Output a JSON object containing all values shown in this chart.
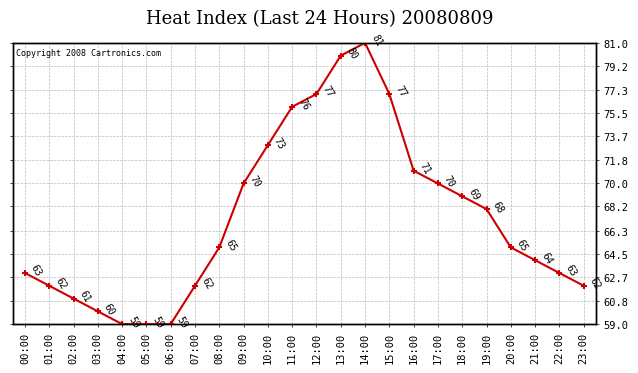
{
  "title": "Heat Index (Last 24 Hours) 20080809",
  "copyright": "Copyright 2008 Cartronics.com",
  "hours": [
    "00:00",
    "01:00",
    "02:00",
    "03:00",
    "04:00",
    "05:00",
    "06:00",
    "07:00",
    "08:00",
    "09:00",
    "10:00",
    "11:00",
    "12:00",
    "13:00",
    "14:00",
    "15:00",
    "16:00",
    "17:00",
    "18:00",
    "19:00",
    "20:00",
    "21:00",
    "22:00",
    "23:00"
  ],
  "values": [
    63,
    62,
    61,
    60,
    59,
    59,
    59,
    62,
    65,
    70,
    73,
    76,
    77,
    80,
    81,
    77,
    71,
    70,
    69,
    68,
    65,
    64,
    63,
    62
  ],
  "line_color": "#cc0000",
  "marker_color": "#cc0000",
  "background_color": "#ffffff",
  "grid_color": "#bbbbbb",
  "ylim": [
    59.0,
    81.0
  ],
  "yticks": [
    59.0,
    60.8,
    62.7,
    64.5,
    66.3,
    68.2,
    70.0,
    71.8,
    73.7,
    75.5,
    77.3,
    79.2,
    81.0
  ],
  "ytick_labels_right": [
    "59.0",
    "60.8",
    "62.7",
    "64.5",
    "66.3",
    "68.2",
    "70.0",
    "71.8",
    "73.7",
    "75.5",
    "77.3",
    "79.2",
    "81.0"
  ],
  "title_fontsize": 13,
  "label_fontsize": 7.5,
  "annotation_fontsize": 7,
  "copyright_fontsize": 6
}
